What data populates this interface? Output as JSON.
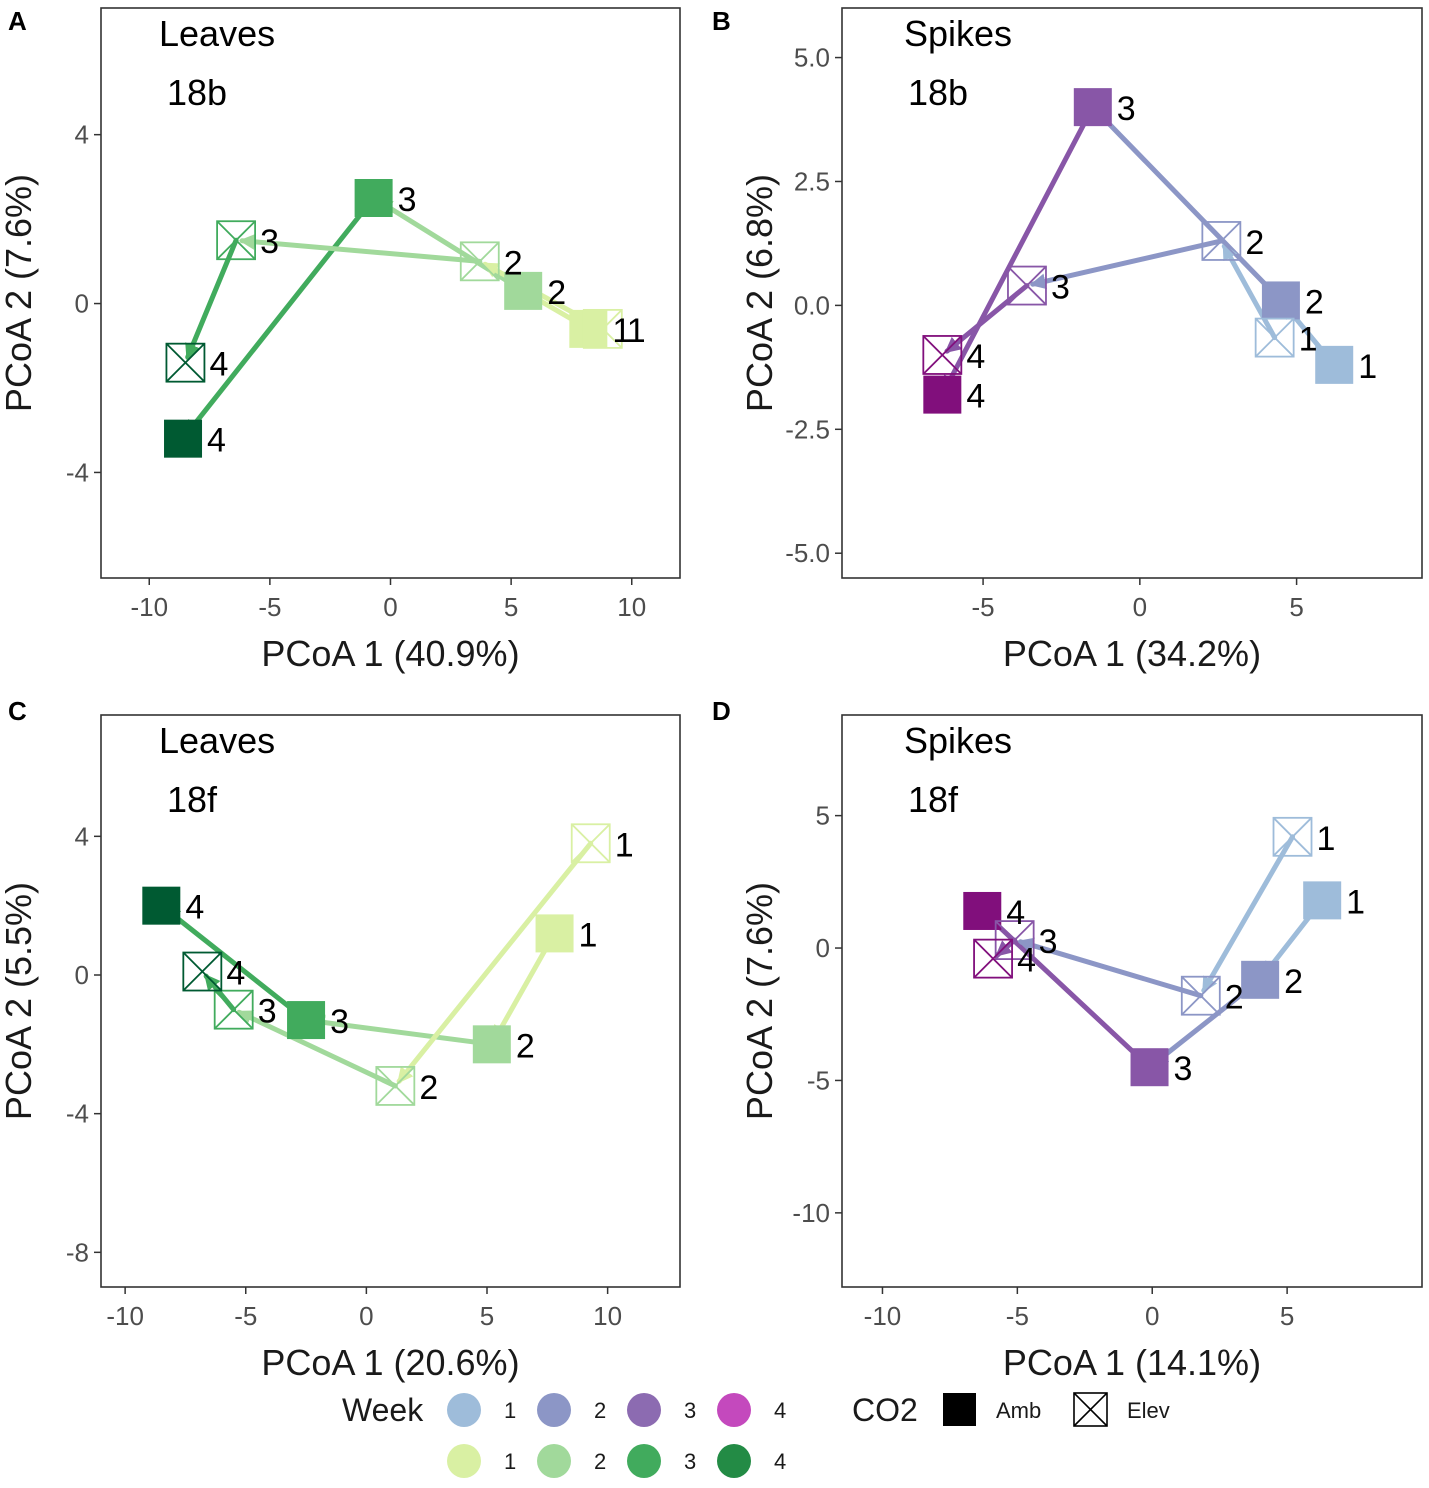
{
  "chart_data": [
    {
      "type": "scatter",
      "panel": "A",
      "annotations": [
        "Leaves",
        "18b"
      ],
      "xlabel": "PCoA 1 (40.9%)",
      "ylabel": "PCoA 2 (7.6%)",
      "xlim": [
        -12,
        12
      ],
      "ylim": [
        -6.5,
        7
      ],
      "xticks": [
        -10,
        -5,
        0,
        5,
        10
      ],
      "xtick_labels": [
        "-10",
        "-5",
        "0",
        "5",
        "10"
      ],
      "yticks": [
        -4,
        0,
        4
      ],
      "ytick_labels": [
        "-4",
        "0",
        "4"
      ],
      "palette": "green",
      "series": [
        {
          "name": "Amb",
          "co2": "Amb",
          "points": [
            {
              "week": 1,
              "x": 8.2,
              "y": -0.6,
              "label": "1"
            },
            {
              "week": 2,
              "x": 5.5,
              "y": 0.3,
              "label": "2"
            },
            {
              "week": 3,
              "x": -0.7,
              "y": 2.5,
              "label": "3"
            },
            {
              "week": 4,
              "x": -8.6,
              "y": -3.2,
              "label": "4"
            }
          ]
        },
        {
          "name": "Elev",
          "co2": "Elev",
          "points": [
            {
              "week": 1,
              "x": 8.8,
              "y": -0.6,
              "label": "1"
            },
            {
              "week": 2,
              "x": 3.7,
              "y": 1.0,
              "label": "2"
            },
            {
              "week": 3,
              "x": -6.4,
              "y": 1.5,
              "label": "3"
            },
            {
              "week": 4,
              "x": -8.5,
              "y": -1.4,
              "label": "4"
            }
          ]
        }
      ]
    },
    {
      "type": "scatter",
      "panel": "B",
      "annotations": [
        "Spikes",
        "18b"
      ],
      "xlabel": "PCoA 1 (34.2%)",
      "ylabel": "PCoA 2 (6.8%)",
      "xlim": [
        -9.5,
        9
      ],
      "ylim": [
        -5.5,
        6
      ],
      "xticks": [
        -5,
        0,
        5
      ],
      "xtick_labels": [
        "-5",
        "0",
        "5"
      ],
      "yticks": [
        5,
        2.5,
        0,
        -2.5,
        -5
      ],
      "ytick_labels": [
        "5.0",
        "2.5",
        "0.0",
        "-2.5",
        "-5.0"
      ],
      "palette": "purple",
      "series": [
        {
          "name": "Amb",
          "co2": "Amb",
          "points": [
            {
              "week": 1,
              "x": 6.2,
              "y": -1.2,
              "label": "1"
            },
            {
              "week": 2,
              "x": 4.5,
              "y": 0.1,
              "label": "2"
            },
            {
              "week": 3,
              "x": -1.5,
              "y": 4.0,
              "label": "3"
            },
            {
              "week": 4,
              "x": -6.3,
              "y": -1.8,
              "label": "4"
            }
          ]
        },
        {
          "name": "Elev",
          "co2": "Elev",
          "points": [
            {
              "week": 1,
              "x": 4.3,
              "y": -0.65,
              "label": "1"
            },
            {
              "week": 2,
              "x": 2.6,
              "y": 1.3,
              "label": "2"
            },
            {
              "week": 3,
              "x": -3.6,
              "y": 0.4,
              "label": "3"
            },
            {
              "week": 4,
              "x": -6.3,
              "y": -1.0,
              "label": "4"
            }
          ]
        }
      ]
    },
    {
      "type": "scatter",
      "panel": "C",
      "annotations": [
        "Leaves",
        "18f"
      ],
      "xlabel": "PCoA 1 (20.6%)",
      "ylabel": "PCoA 2 (5.5%)",
      "xlim": [
        -11,
        13
      ],
      "ylim": [
        -9,
        7.5
      ],
      "xticks": [
        -10,
        -5,
        0,
        5,
        10
      ],
      "xtick_labels": [
        "-10",
        "-5",
        "0",
        "5",
        "10"
      ],
      "yticks": [
        4,
        0,
        -4,
        -8
      ],
      "ytick_labels": [
        "4",
        "0",
        "-4",
        "-8"
      ],
      "palette": "green",
      "series": [
        {
          "name": "Amb",
          "co2": "Amb",
          "points": [
            {
              "week": 1,
              "x": 7.8,
              "y": 1.2,
              "label": "1"
            },
            {
              "week": 2,
              "x": 5.2,
              "y": -2.0,
              "label": "2"
            },
            {
              "week": 3,
              "x": -2.5,
              "y": -1.3,
              "label": "3"
            },
            {
              "week": 4,
              "x": -8.5,
              "y": 2.0,
              "label": "4"
            }
          ]
        },
        {
          "name": "Elev",
          "co2": "Elev",
          "points": [
            {
              "week": 1,
              "x": 9.3,
              "y": 3.8,
              "label": "1"
            },
            {
              "week": 2,
              "x": 1.2,
              "y": -3.2,
              "label": "2"
            },
            {
              "week": 3,
              "x": -5.5,
              "y": -1.0,
              "label": "3"
            },
            {
              "week": 4,
              "x": -6.8,
              "y": 0.1,
              "label": "4"
            }
          ]
        }
      ]
    },
    {
      "type": "scatter",
      "panel": "D",
      "annotations": [
        "Spikes",
        "18f"
      ],
      "xlabel": "PCoA 1 (14.1%)",
      "ylabel": "PCoA 2 (7.6%)",
      "xlim": [
        -11.5,
        10
      ],
      "ylim": [
        -12.8,
        8.8
      ],
      "xticks": [
        -10,
        -5,
        0,
        5
      ],
      "xtick_labels": [
        "-10",
        "-5",
        "0",
        "5"
      ],
      "yticks": [
        5,
        0,
        -5,
        -10
      ],
      "ytick_labels": [
        "5",
        "0",
        "-5",
        "-10"
      ],
      "palette": "purple",
      "series": [
        {
          "name": "Amb",
          "co2": "Amb",
          "points": [
            {
              "week": 1,
              "x": 6.3,
              "y": 1.8,
              "label": "1"
            },
            {
              "week": 2,
              "x": 4.0,
              "y": -1.2,
              "label": "2"
            },
            {
              "week": 3,
              "x": -0.1,
              "y": -4.5,
              "label": "3"
            },
            {
              "week": 4,
              "x": -6.3,
              "y": 1.4,
              "label": "4"
            }
          ]
        },
        {
          "name": "Elev",
          "co2": "Elev",
          "points": [
            {
              "week": 1,
              "x": 5.2,
              "y": 4.2,
              "label": "1"
            },
            {
              "week": 2,
              "x": 1.8,
              "y": -1.8,
              "label": "2"
            },
            {
              "week": 3,
              "x": -5.1,
              "y": 0.3,
              "label": "3"
            },
            {
              "week": 4,
              "x": -5.9,
              "y": -0.4,
              "label": "4"
            }
          ]
        }
      ]
    }
  ],
  "colors": {
    "purple": [
      "#9ebcda",
      "#8c96c6",
      "#8856a7",
      "#810f7c"
    ],
    "green": [
      "#d9f0a3",
      "#a1d99b",
      "#41ab5d",
      "#005a32"
    ],
    "legend_green": [
      "#d9f0a3",
      "#a1d99b",
      "#41ab5d",
      "#238b45"
    ],
    "legend_purple": [
      "#9ebcda",
      "#8c96c6",
      "#8c6bb1",
      "#c449bd"
    ]
  },
  "legend": {
    "week_title": "Week",
    "week_labels": [
      "1",
      "2",
      "3",
      "4"
    ],
    "co2_title": "CO2",
    "co2_labels": [
      "Amb",
      "Elev"
    ]
  }
}
